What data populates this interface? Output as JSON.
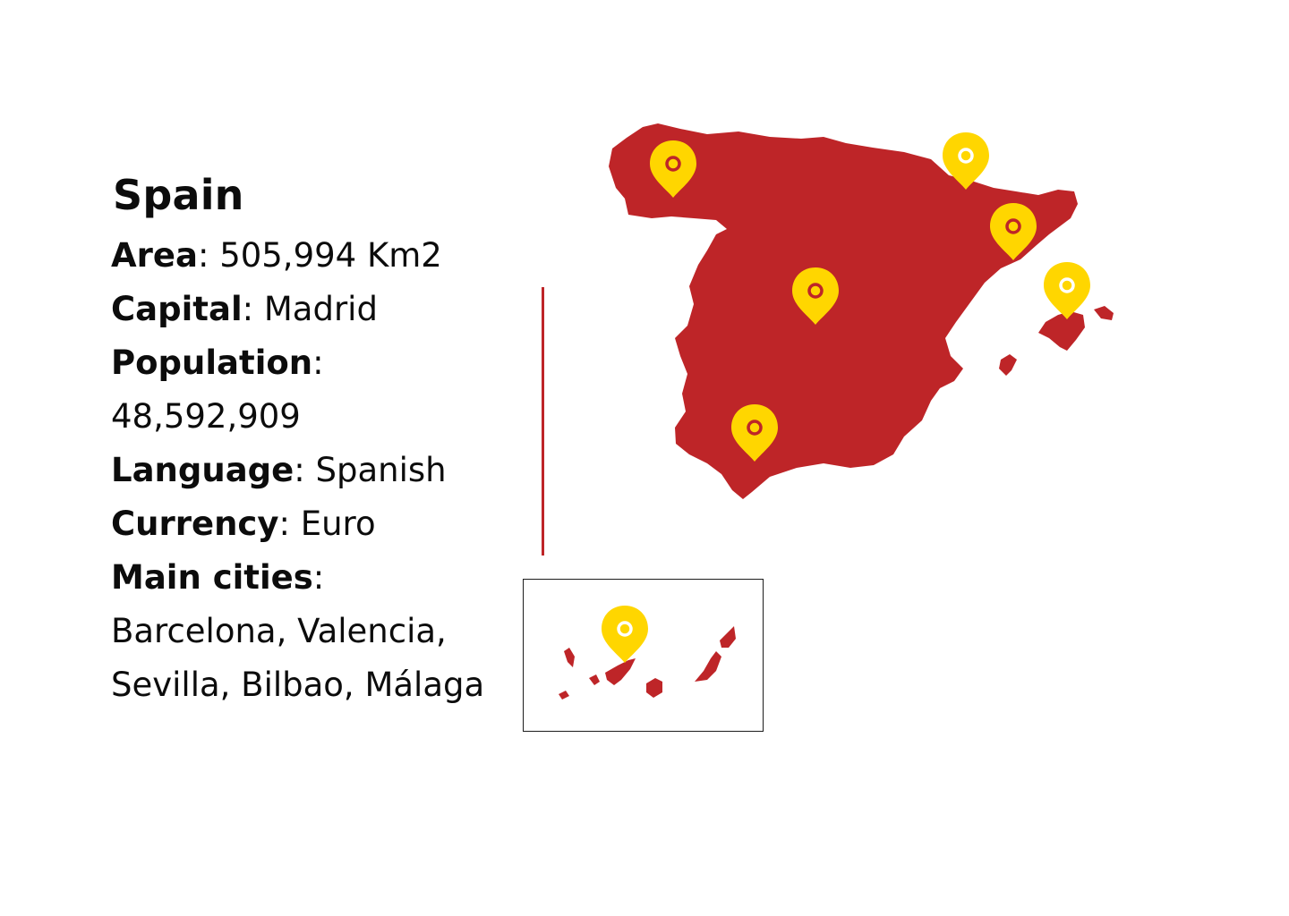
{
  "country": {
    "name": "Spain",
    "facts": [
      {
        "label": "Area",
        "sep": ": ",
        "value": "505,994 Km2"
      },
      {
        "label": "Capital",
        "sep": ": ",
        "value": "Madrid"
      },
      {
        "label": "Population",
        "sep": ":",
        "value": "48,592,909"
      },
      {
        "label": "Language",
        "sep": ": ",
        "value": "Spanish"
      },
      {
        "label": "Currency",
        "sep": ": ",
        "value": "Euro"
      },
      {
        "label": "Main cities",
        "sep": ":",
        "value": "Barcelona, Valencia, Sevilla, Bilbao, Málaga"
      }
    ]
  },
  "colors": {
    "land": "#be2528",
    "pin": "#ffd600",
    "pin_ring_red": "#be2528",
    "pin_ring_white": "#ffffff",
    "divider": "#be2528"
  },
  "icons": {
    "pin": "map-pin-icon"
  }
}
